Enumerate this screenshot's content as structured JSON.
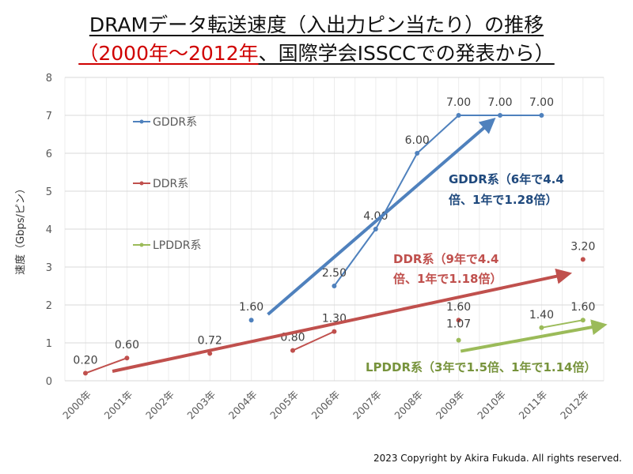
{
  "title_line1": "DRAMデータ転送速度（入出力ピン当たり）の推移",
  "title_line2_red": "（2000年～2012年",
  "title_line2_rest": "、国際学会ISSCCでの発表から）",
  "copyright": "2023 Copyright by Akira Fukuda. All rights reserved.",
  "chart_data": {
    "type": "line",
    "ylabel": "速度（Gbps/ピン）",
    "ylim": [
      0,
      8
    ],
    "yticks": [
      "0",
      "1",
      "2",
      "3",
      "4",
      "5",
      "6",
      "7",
      "8"
    ],
    "categories": [
      "2000年",
      "2001年",
      "2002年",
      "2003年",
      "2004年",
      "2005年",
      "2006年",
      "2007年",
      "2008年",
      "2009年",
      "2010年",
      "2011年",
      "2012年"
    ],
    "grid": true,
    "legend": "left",
    "series": [
      {
        "name": "GDDR系",
        "color": "#4f81bd",
        "values": [
          null,
          null,
          null,
          null,
          1.6,
          null,
          2.5,
          4.0,
          6.0,
          7.0,
          7.0,
          7.0,
          null
        ],
        "labels": [
          null,
          null,
          null,
          null,
          "1.60",
          null,
          "2.50",
          "4.00",
          "6.00",
          "7.00",
          "7.00",
          "7.00",
          null
        ]
      },
      {
        "name": "DDR系",
        "color": "#c0504d",
        "values": [
          0.2,
          0.6,
          null,
          0.72,
          null,
          0.8,
          1.3,
          null,
          null,
          1.6,
          null,
          null,
          3.2
        ],
        "labels": [
          "0.20",
          "0.60",
          null,
          "0.72",
          null,
          "0.80",
          "1.30",
          null,
          null,
          "1.60",
          null,
          null,
          "3.20"
        ]
      },
      {
        "name": "LPDDR系",
        "color": "#9bbb59",
        "values": [
          null,
          null,
          null,
          null,
          null,
          null,
          null,
          null,
          null,
          1.07,
          null,
          1.4,
          1.6
        ],
        "labels": [
          null,
          null,
          null,
          null,
          null,
          null,
          null,
          null,
          null,
          "1.07",
          null,
          "1.40",
          "1.60"
        ]
      }
    ],
    "trends": [
      {
        "series": "GDDR系",
        "from": [
          2004.4,
          1.75
        ],
        "to": [
          2009.75,
          6.8
        ],
        "text1": "GDDR系（6年で4.4",
        "text2": "倍、1年で1.28倍）",
        "color": "#1f497d"
      },
      {
        "series": "DDR系",
        "from": [
          2000.65,
          0.25
        ],
        "to": [
          2011.55,
          2.8
        ],
        "text1": "DDR系（9年で4.4",
        "text2": "倍、1年で1.18倍）",
        "color": "#c0504d"
      },
      {
        "series": "LPDDR系",
        "from": [
          2009.05,
          0.78
        ],
        "to": [
          2012.4,
          1.45
        ],
        "text1": "LPDDR系（3年で1.5倍、1年で1.14倍）",
        "text2": "",
        "color": "#77933c"
      }
    ]
  }
}
